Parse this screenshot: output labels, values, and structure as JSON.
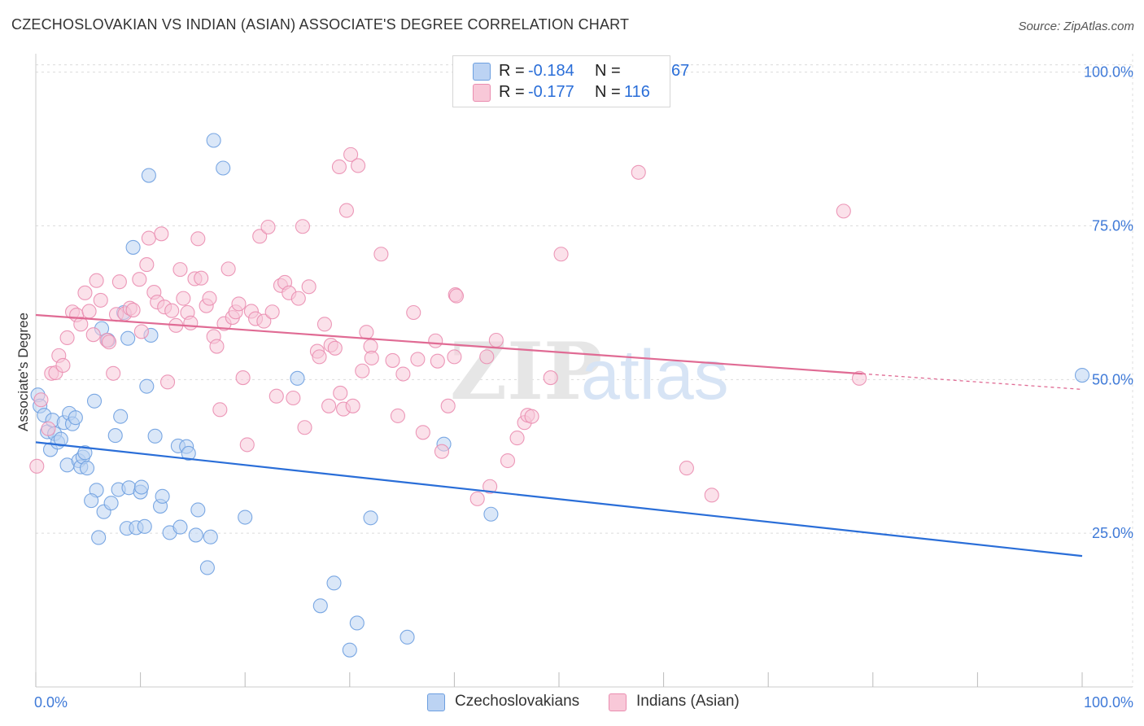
{
  "chart_data": {
    "type": "scatter",
    "title": "CZECHOSLOVAKIAN VS INDIAN (ASIAN) ASSOCIATE'S DEGREE CORRELATION CHART",
    "source": "Source: ZipAtlas.com",
    "xlabel": "",
    "ylabel": "Associate's Degree",
    "xlim": [
      0,
      100
    ],
    "ylim": [
      0,
      103
    ],
    "x_tick_labels": [
      "0.0%",
      "100.0%"
    ],
    "y_ticks": [
      25,
      50,
      75,
      100
    ],
    "y_tick_labels": [
      "25.0%",
      "50.0%",
      "75.0%",
      "100.0%"
    ],
    "grid": true,
    "watermark": "ZIPatlas",
    "legend": {
      "entries": [
        {
          "name": "Czechoslovakians",
          "r_label": "R =",
          "r": "-0.184",
          "n_label": "N =",
          "n": "67"
        },
        {
          "name": "Indians (Asian)",
          "r_label": "R =",
          "r": "-0.177",
          "n_label": "N =",
          "n": "116"
        }
      ]
    },
    "series": [
      {
        "name": "Czechoslovakians",
        "color": "#6d9fe0",
        "fill": "#bcd3f3",
        "line_color": "#2a6ed8",
        "trend": {
          "x0": 0,
          "y0": 39.8,
          "x1": 100,
          "y1": 21.3,
          "solid_until": 100
        },
        "points": [
          [
            0.2,
            47.5
          ],
          [
            0.4,
            45.7
          ],
          [
            0.8,
            44.2
          ],
          [
            1.1,
            41.5
          ],
          [
            1.4,
            38.6
          ],
          [
            1.6,
            43.4
          ],
          [
            1.8,
            41.2
          ],
          [
            2.1,
            39.8
          ],
          [
            2.4,
            40.3
          ],
          [
            2.7,
            43.0
          ],
          [
            3.0,
            36.1
          ],
          [
            3.2,
            44.5
          ],
          [
            3.5,
            42.8
          ],
          [
            3.8,
            43.8
          ],
          [
            4.1,
            36.8
          ],
          [
            4.3,
            35.8
          ],
          [
            4.5,
            37.4
          ],
          [
            4.7,
            38.1
          ],
          [
            4.9,
            35.6
          ],
          [
            5.6,
            46.5
          ],
          [
            5.8,
            32.0
          ],
          [
            6.0,
            24.3
          ],
          [
            5.3,
            30.3
          ],
          [
            6.5,
            28.5
          ],
          [
            6.3,
            58.3
          ],
          [
            6.9,
            56.4
          ],
          [
            7.2,
            29.9
          ],
          [
            7.6,
            40.9
          ],
          [
            7.9,
            32.1
          ],
          [
            8.1,
            44.0
          ],
          [
            8.4,
            60.9
          ],
          [
            8.9,
            32.4
          ],
          [
            8.7,
            25.8
          ],
          [
            8.8,
            56.7
          ],
          [
            9.3,
            71.5
          ],
          [
            9.6,
            25.9
          ],
          [
            10.0,
            31.7
          ],
          [
            10.1,
            32.5
          ],
          [
            10.4,
            26.1
          ],
          [
            10.6,
            48.9
          ],
          [
            10.8,
            83.2
          ],
          [
            11.0,
            57.2
          ],
          [
            11.4,
            40.8
          ],
          [
            11.9,
            29.4
          ],
          [
            12.1,
            31.0
          ],
          [
            12.8,
            25.1
          ],
          [
            13.6,
            39.2
          ],
          [
            13.8,
            26.0
          ],
          [
            14.4,
            39.1
          ],
          [
            14.6,
            38.0
          ],
          [
            15.3,
            24.7
          ],
          [
            15.5,
            28.8
          ],
          [
            16.4,
            19.4
          ],
          [
            16.7,
            24.4
          ],
          [
            17.0,
            88.9
          ],
          [
            20.0,
            27.6
          ],
          [
            25.0,
            50.2
          ],
          [
            27.2,
            13.2
          ],
          [
            28.5,
            16.9
          ],
          [
            30.0,
            6.0
          ],
          [
            30.7,
            10.4
          ],
          [
            32.0,
            27.5
          ],
          [
            35.5,
            8.1
          ],
          [
            39.0,
            39.5
          ],
          [
            43.5,
            28.1
          ],
          [
            100.0,
            50.7
          ],
          [
            17.9,
            84.4
          ]
        ]
      },
      {
        "name": "Indians (Asian)",
        "color": "#ea8db0",
        "fill": "#f8c8d8",
        "line_color": "#e06b94",
        "trend": {
          "x0": 0,
          "y0": 60.5,
          "x1": 100,
          "y1": 48.4,
          "solid_until": 79
        },
        "points": [
          [
            0.1,
            35.9
          ],
          [
            0.5,
            46.7
          ],
          [
            1.2,
            42.0
          ],
          [
            1.5,
            51.0
          ],
          [
            1.9,
            51.1
          ],
          [
            2.2,
            53.9
          ],
          [
            2.6,
            52.3
          ],
          [
            3.0,
            56.8
          ],
          [
            3.5,
            61.0
          ],
          [
            3.9,
            60.5
          ],
          [
            4.3,
            59.0
          ],
          [
            4.7,
            64.1
          ],
          [
            5.1,
            61.1
          ],
          [
            5.5,
            57.3
          ],
          [
            5.8,
            66.1
          ],
          [
            6.2,
            62.9
          ],
          [
            6.8,
            56.4
          ],
          [
            7.0,
            56.1
          ],
          [
            7.4,
            51.0
          ],
          [
            7.7,
            60.6
          ],
          [
            8.0,
            65.9
          ],
          [
            8.5,
            60.7
          ],
          [
            9.0,
            61.6
          ],
          [
            9.3,
            61.3
          ],
          [
            9.9,
            66.3
          ],
          [
            10.1,
            57.8
          ],
          [
            10.6,
            68.7
          ],
          [
            10.8,
            73.0
          ],
          [
            11.3,
            64.2
          ],
          [
            11.6,
            62.6
          ],
          [
            12.0,
            73.7
          ],
          [
            12.3,
            61.8
          ],
          [
            12.6,
            49.6
          ],
          [
            13.0,
            61.2
          ],
          [
            13.4,
            58.8
          ],
          [
            13.8,
            67.9
          ],
          [
            14.1,
            63.2
          ],
          [
            14.5,
            60.9
          ],
          [
            14.8,
            59.2
          ],
          [
            15.2,
            66.4
          ],
          [
            15.5,
            72.9
          ],
          [
            15.8,
            66.5
          ],
          [
            16.3,
            62.0
          ],
          [
            16.6,
            63.2
          ],
          [
            17.0,
            57.0
          ],
          [
            17.3,
            55.4
          ],
          [
            17.6,
            45.1
          ],
          [
            18.0,
            59.1
          ],
          [
            18.4,
            68.0
          ],
          [
            18.8,
            60.1
          ],
          [
            19.1,
            61.0
          ],
          [
            19.4,
            62.3
          ],
          [
            19.8,
            50.3
          ],
          [
            20.2,
            39.4
          ],
          [
            20.6,
            61.1
          ],
          [
            21.0,
            59.9
          ],
          [
            21.4,
            73.3
          ],
          [
            21.8,
            59.5
          ],
          [
            22.2,
            74.8
          ],
          [
            22.6,
            61.0
          ],
          [
            23.0,
            47.3
          ],
          [
            23.4,
            65.3
          ],
          [
            23.8,
            65.8
          ],
          [
            24.2,
            64.1
          ],
          [
            24.6,
            47.0
          ],
          [
            25.1,
            63.2
          ],
          [
            25.5,
            74.9
          ],
          [
            25.7,
            42.2
          ],
          [
            26.1,
            65.1
          ],
          [
            26.9,
            54.6
          ],
          [
            27.1,
            53.7
          ],
          [
            27.6,
            59.0
          ],
          [
            28.0,
            45.7
          ],
          [
            28.2,
            55.6
          ],
          [
            28.6,
            55.1
          ],
          [
            29.0,
            84.6
          ],
          [
            29.1,
            47.8
          ],
          [
            29.4,
            45.2
          ],
          [
            29.7,
            77.5
          ],
          [
            30.1,
            86.6
          ],
          [
            30.3,
            45.7
          ],
          [
            30.8,
            84.8
          ],
          [
            31.2,
            51.4
          ],
          [
            31.6,
            57.7
          ],
          [
            32.0,
            55.4
          ],
          [
            32.1,
            53.5
          ],
          [
            33.0,
            70.4
          ],
          [
            34.1,
            53.1
          ],
          [
            34.6,
            44.1
          ],
          [
            35.1,
            50.9
          ],
          [
            36.1,
            60.9
          ],
          [
            36.5,
            53.3
          ],
          [
            37.0,
            41.4
          ],
          [
            38.2,
            56.3
          ],
          [
            38.4,
            53.0
          ],
          [
            38.8,
            38.3
          ],
          [
            39.4,
            45.7
          ],
          [
            40.0,
            53.7
          ],
          [
            40.1,
            63.8
          ],
          [
            40.2,
            63.6
          ],
          [
            42.2,
            30.6
          ],
          [
            43.1,
            53.7
          ],
          [
            43.4,
            32.6
          ],
          [
            44.0,
            56.4
          ],
          [
            45.1,
            36.8
          ],
          [
            46.0,
            40.5
          ],
          [
            46.7,
            43.0
          ],
          [
            47.0,
            44.2
          ],
          [
            47.4,
            44.0
          ],
          [
            49.2,
            50.3
          ],
          [
            50.2,
            70.4
          ],
          [
            57.6,
            83.7
          ],
          [
            62.2,
            35.6
          ],
          [
            64.6,
            31.2
          ],
          [
            78.7,
            50.2
          ],
          [
            77.2,
            77.4
          ]
        ]
      }
    ]
  }
}
